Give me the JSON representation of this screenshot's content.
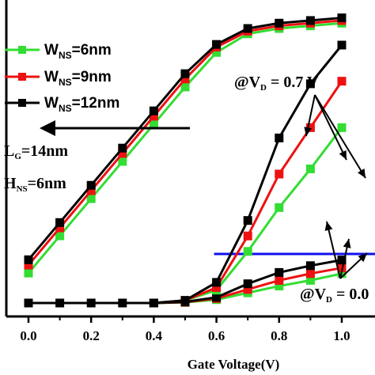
{
  "chart_data": {
    "type": "line",
    "xlabel": "Gate Voltage(V)",
    "xlim": [
      -0.05,
      1.05
    ],
    "ylim": [
      0,
      1
    ],
    "x_ticks": [
      "0.0",
      "0.2",
      "0.4",
      "0.6",
      "0.8",
      "1.0"
    ],
    "x_tick_values": [
      0.0,
      0.2,
      0.4,
      0.6,
      0.8,
      1.0
    ],
    "x": [
      0.0,
      0.1,
      0.2,
      0.3,
      0.4,
      0.5,
      0.6,
      0.7,
      0.8,
      0.9,
      1.0
    ],
    "legend": {
      "placement": "top-left",
      "entries": [
        {
          "prefix": "W",
          "sub": "NS",
          "suffix": "=6nm",
          "color": "#33dd33"
        },
        {
          "prefix": "W",
          "sub": "NS",
          "suffix": "=9nm",
          "color": "#ee1111"
        },
        {
          "prefix": "W",
          "sub": "NS",
          "suffix": "=12nm",
          "color": "#000000"
        }
      ]
    },
    "annotations": {
      "lg_main": "L",
      "lg_sub": "G",
      "lg_rest": "=14nm",
      "hns_main": "H",
      "hns_sub": "NS",
      "hns_rest": "=6nm",
      "vd_high_pre": "@V",
      "vd_high_sub": "D",
      "vd_high_rest": " = 0.7 V",
      "vd_low_pre": "@V",
      "vd_low_sub": "D",
      "vd_low_rest": " = 0.0"
    },
    "reference_line": {
      "color": "#1010ee",
      "x_from": 0.6,
      "x_to": 1.05,
      "y": 0.23
    },
    "series": [
      {
        "color": "#33dd33",
        "group": "log",
        "values": [
          0.08,
          0.22,
          0.36,
          0.5,
          0.64,
          0.78,
          0.91,
          0.98,
          1.0,
          1.01,
          1.02
        ]
      },
      {
        "color": "#ee1111",
        "group": "log",
        "values": [
          0.11,
          0.25,
          0.39,
          0.53,
          0.67,
          0.81,
          0.93,
          0.99,
          1.01,
          1.02,
          1.03
        ]
      },
      {
        "color": "#000000",
        "group": "log",
        "values": [
          0.13,
          0.27,
          0.41,
          0.55,
          0.69,
          0.83,
          0.94,
          1.0,
          1.02,
          1.03,
          1.04
        ]
      },
      {
        "color": "#33dd33",
        "group": "linear_low",
        "values": [
          null,
          null,
          null,
          null,
          0.0,
          0.005,
          0.03,
          0.09,
          0.15,
          0.2,
          0.26
        ]
      },
      {
        "color": "#ee1111",
        "group": "linear_low",
        "values": [
          null,
          null,
          null,
          null,
          0.0,
          0.007,
          0.04,
          0.12,
          0.2,
          0.26,
          0.31
        ]
      },
      {
        "color": "#000000",
        "group": "linear_low",
        "values": [
          null,
          null,
          null,
          null,
          0.0,
          0.01,
          0.05,
          0.17,
          0.27,
          0.33,
          0.38
        ]
      },
      {
        "color": "#33dd33",
        "group": "linear_high",
        "values": [
          null,
          null,
          null,
          null,
          0.0,
          0.01,
          0.05,
          0.2,
          0.37,
          0.52,
          0.68
        ]
      },
      {
        "color": "#ee1111",
        "group": "linear_high",
        "values": [
          null,
          null,
          null,
          null,
          0.0,
          0.01,
          0.06,
          0.26,
          0.5,
          0.68,
          0.86
        ]
      },
      {
        "color": "#000000",
        "group": "linear_high",
        "values": [
          0.0,
          0.0,
          0.0,
          0.0,
          0.0,
          0.01,
          0.08,
          0.32,
          0.64,
          0.85,
          1.0
        ]
      }
    ]
  }
}
